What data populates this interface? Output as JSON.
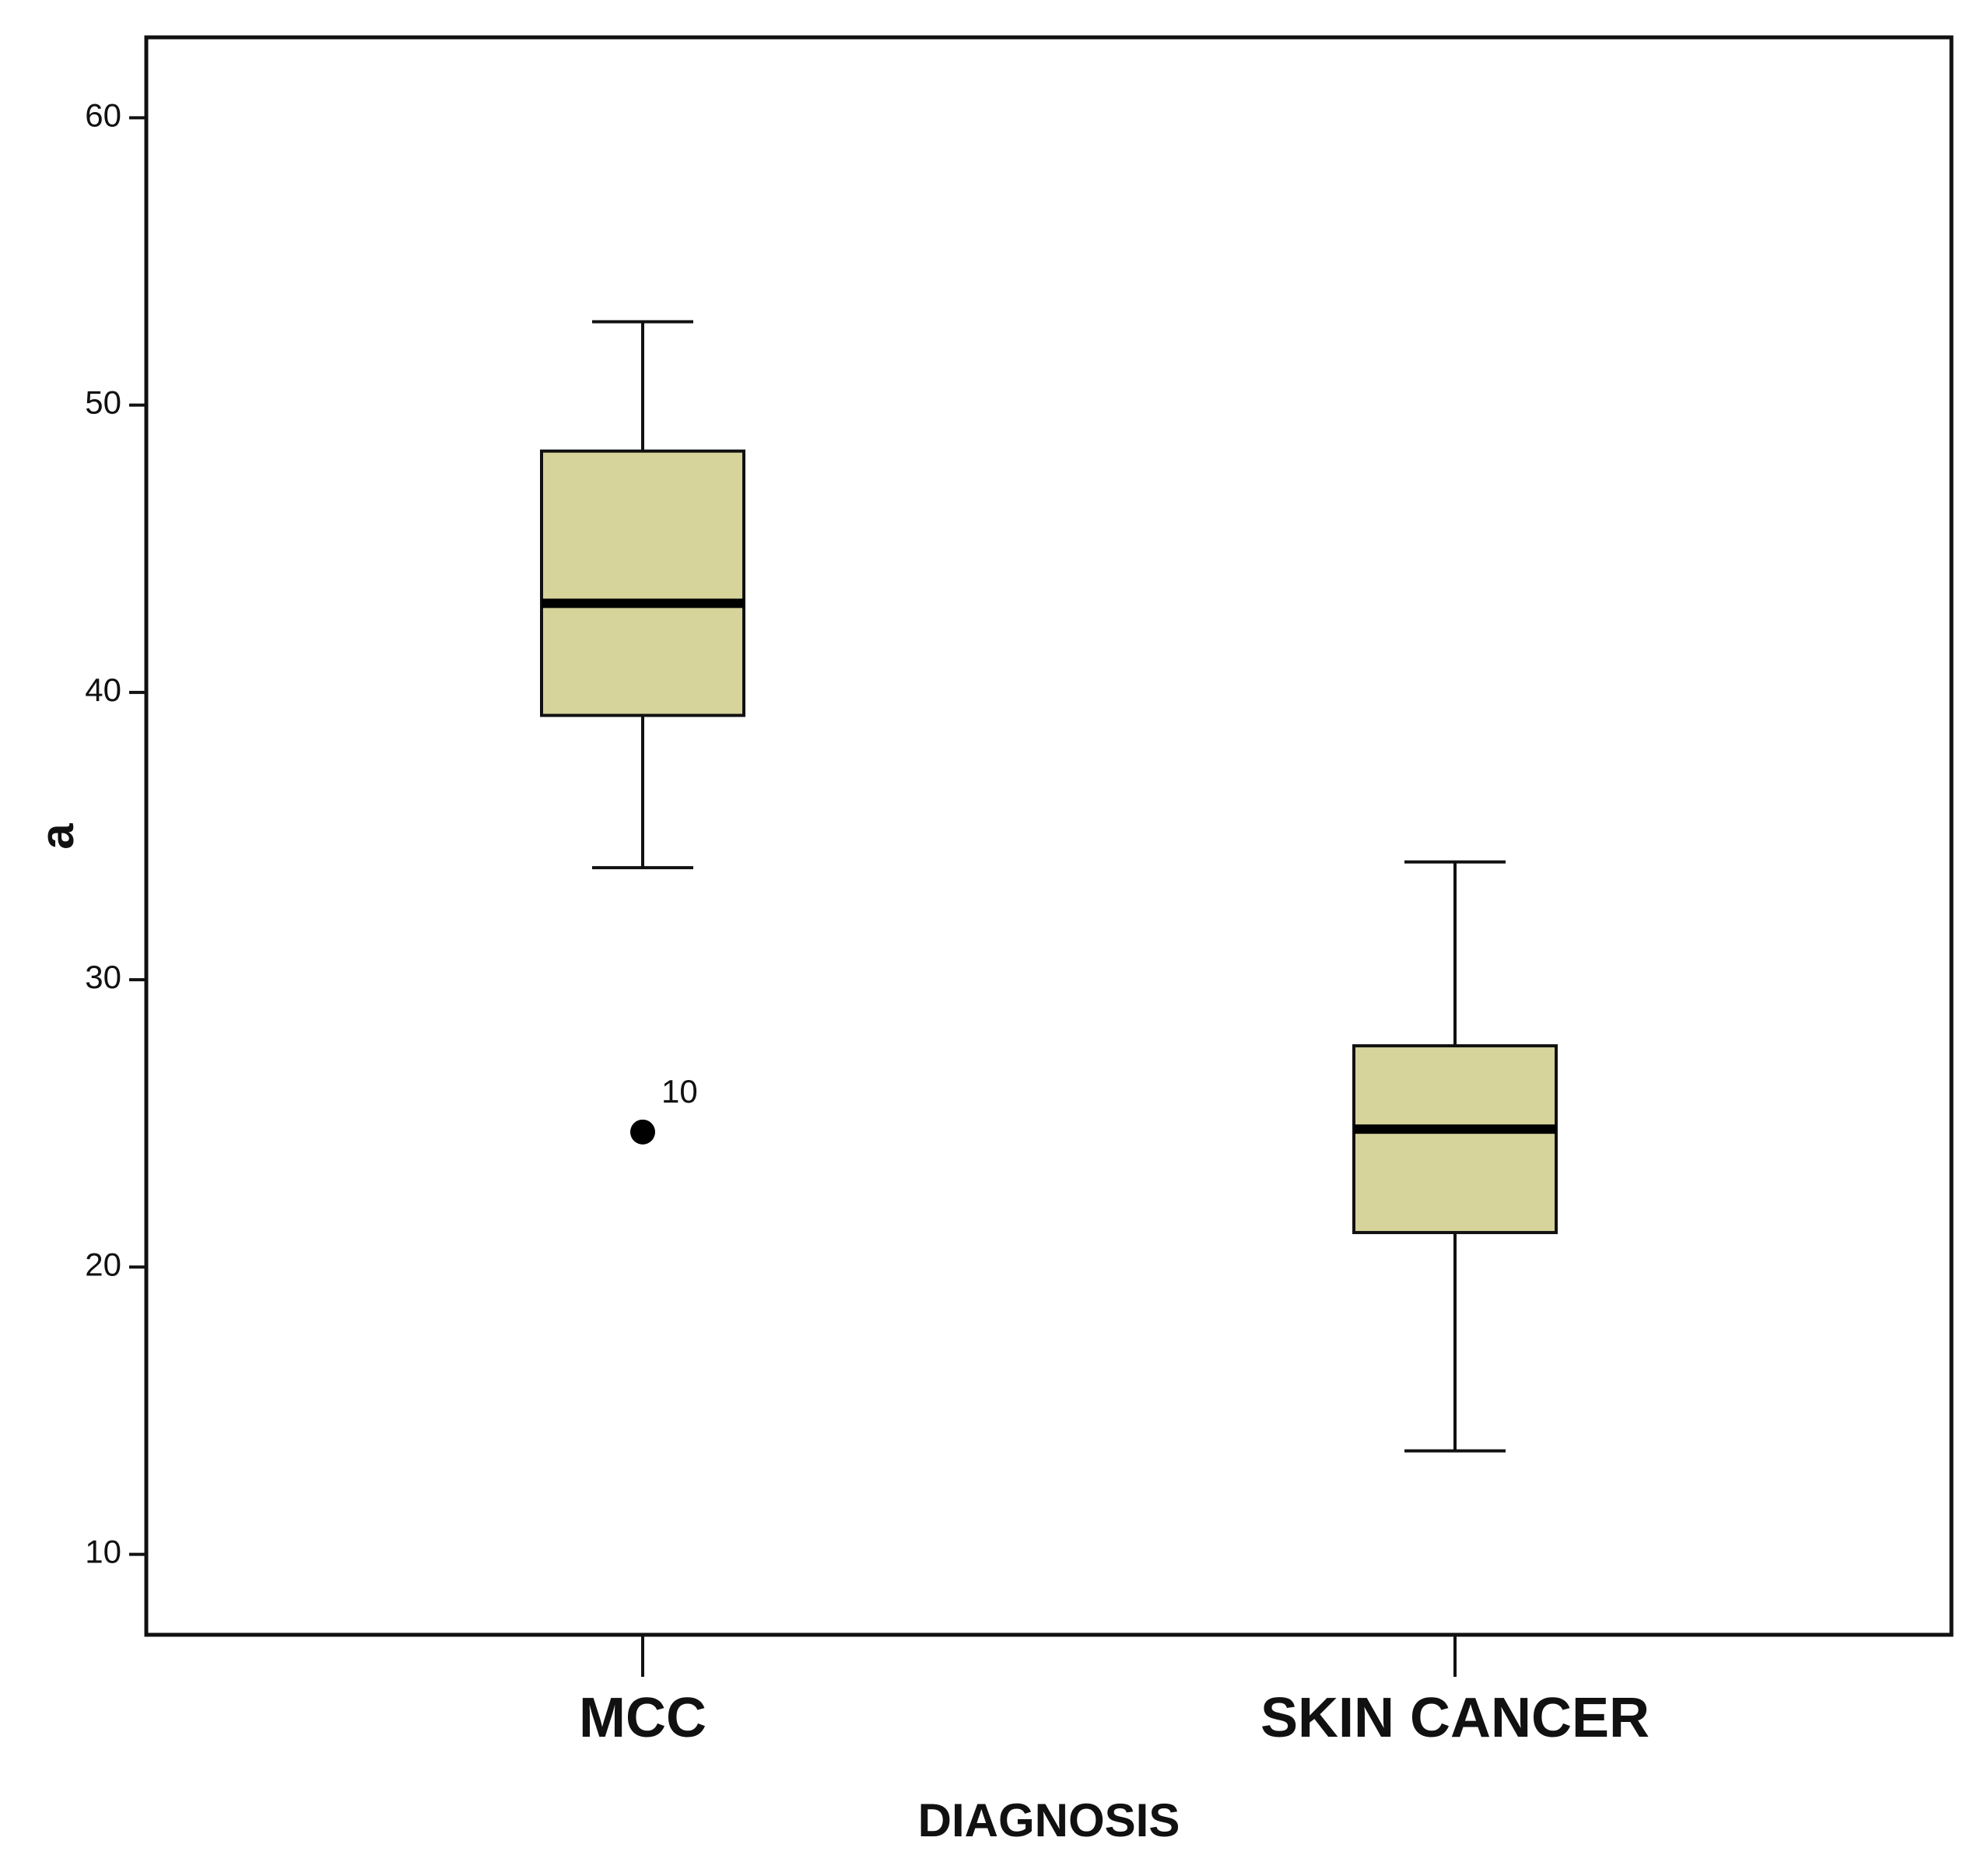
{
  "chart_data": {
    "type": "boxplot",
    "xlabel": "DIAGNOSIS",
    "ylabel": "a",
    "ylim": [
      7.2,
      62.8
    ],
    "yticks": [
      10,
      20,
      30,
      40,
      50,
      60
    ],
    "ytick_labels": [
      "10",
      "20",
      "30",
      "40",
      "50",
      "60"
    ],
    "grid": false,
    "legend": "none",
    "box_color": "#d6d39b",
    "categories": [
      "MCC",
      "SKIN CANCER"
    ],
    "boxes": [
      {
        "name": "MCC",
        "whisker_low": 33.9,
        "q1": 39.2,
        "median": 43.1,
        "q3": 48.4,
        "whisker_high": 52.9,
        "outliers": [
          {
            "value": 24.7,
            "label": "10"
          }
        ]
      },
      {
        "name": "SKIN CANCER",
        "whisker_low": 13.6,
        "q1": 21.2,
        "median": 24.8,
        "q3": 27.7,
        "whisker_high": 34.1,
        "outliers": []
      }
    ]
  }
}
